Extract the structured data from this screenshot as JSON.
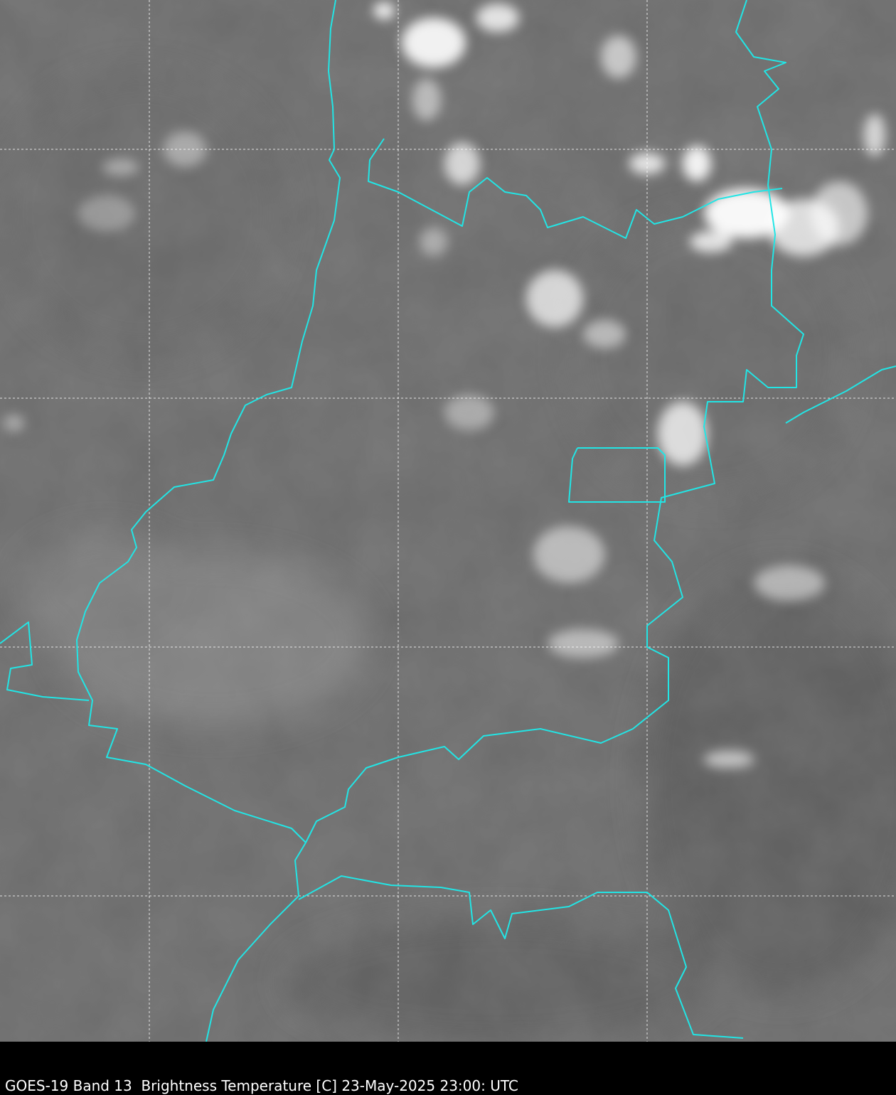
{
  "caption": "GOES-19 Band 13  Brightness Temperature [C] 23-May-2025 23:00: UTC",
  "map": {
    "product": "infrared satellite image, grayscale",
    "colors": {
      "background_gray": "#6e6e6e",
      "border_color": "#22e5e5",
      "grid_color": "#ffffff",
      "cloud_color": "#ffffff"
    },
    "gridlines": "dashed, white"
  }
}
